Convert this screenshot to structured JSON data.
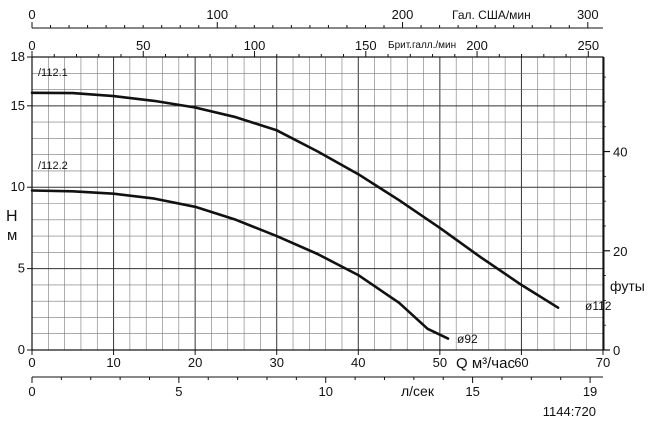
{
  "chart_data": {
    "type": "line",
    "x_axis": {
      "label": "Q м³/час",
      "range": [
        0,
        70
      ],
      "ticks": [
        0,
        10,
        20,
        30,
        40,
        50,
        60,
        70
      ]
    },
    "y_axis": {
      "label_line1": "H",
      "label_line2": "м",
      "range": [
        0,
        18
      ],
      "ticks": [
        0,
        5,
        10,
        15,
        18
      ]
    },
    "y_axis_right": {
      "label": "футы",
      "range_ft": [
        0,
        59.06
      ],
      "ticks": [
        0,
        20,
        40
      ]
    },
    "top_axis_us": {
      "label": "Гал. США/мин",
      "range": [
        0,
        308.2
      ],
      "ticks": [
        0,
        100,
        200,
        300
      ]
    },
    "top_axis_brit": {
      "label": "Брит.галл./мин",
      "range": [
        0,
        256.6
      ],
      "ticks": [
        0,
        50,
        100,
        150,
        200,
        250
      ]
    },
    "bottom_axis_ls": {
      "label": "л/сек",
      "range": [
        0,
        19.44
      ],
      "ticks": [
        0,
        5,
        10,
        15,
        19
      ]
    },
    "grid": true,
    "series": [
      {
        "name": "ø112",
        "model": "/112.1",
        "color": "#111111",
        "points": [
          [
            0,
            15.8
          ],
          [
            5,
            15.78
          ],
          [
            10,
            15.6
          ],
          [
            15,
            15.3
          ],
          [
            20,
            14.9
          ],
          [
            25,
            14.3
          ],
          [
            30,
            13.5
          ],
          [
            35,
            12.2
          ],
          [
            40,
            10.8
          ],
          [
            45,
            9.2
          ],
          [
            50,
            7.5
          ],
          [
            55,
            5.7
          ],
          [
            60,
            4.0
          ],
          [
            64.5,
            2.6
          ]
        ]
      },
      {
        "name": "ø92",
        "model": "/112.2",
        "color": "#111111",
        "points": [
          [
            0,
            9.8
          ],
          [
            5,
            9.75
          ],
          [
            10,
            9.6
          ],
          [
            15,
            9.3
          ],
          [
            20,
            8.8
          ],
          [
            25,
            8.0
          ],
          [
            30,
            7.0
          ],
          [
            35,
            5.9
          ],
          [
            40,
            4.6
          ],
          [
            45,
            2.9
          ],
          [
            48.5,
            1.3
          ],
          [
            51,
            0.7
          ]
        ]
      }
    ],
    "figure_code": "1144:720"
  }
}
